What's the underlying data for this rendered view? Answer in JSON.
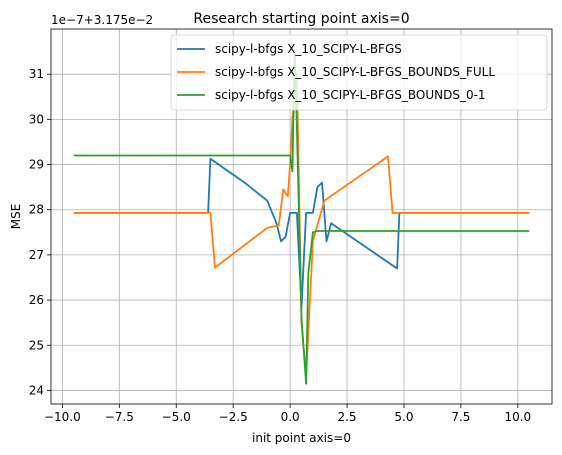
{
  "chart_data": {
    "type": "line",
    "title": "Research starting point axis=0",
    "xlabel": "init point axis=0",
    "ylabel": "MSE",
    "offset_label": "1e−7+3.175e−2",
    "xlim": [
      -10.5,
      11.5
    ],
    "ylim": [
      23.7,
      32.0
    ],
    "x_ticks": [
      -10.0,
      -7.5,
      -5.0,
      -2.5,
      0.0,
      2.5,
      5.0,
      7.5,
      10.0
    ],
    "x_tick_labels": [
      "−10.0",
      "−7.5",
      "−5.0",
      "−2.5",
      "0.0",
      "2.5",
      "5.0",
      "7.5",
      "10.0"
    ],
    "y_ticks": [
      24,
      25,
      26,
      27,
      28,
      29,
      30,
      31
    ],
    "y_tick_labels": [
      "24",
      "25",
      "26",
      "27",
      "28",
      "29",
      "30",
      "31"
    ],
    "grid": true,
    "legend_position": "top-right",
    "series": [
      {
        "name": "scipy-l-bfgs X_10_SCIPY-L-BFGS",
        "color": "#1f77b4",
        "x": [
          -9.5,
          -3.6,
          -3.5,
          -2.0,
          -1.0,
          -0.6,
          -0.4,
          -0.2,
          0.0,
          0.3,
          0.5,
          0.7,
          1.0,
          1.2,
          1.4,
          1.6,
          1.8,
          4.7,
          4.8,
          10.5
        ],
        "y": [
          27.93,
          27.93,
          29.13,
          28.6,
          28.2,
          27.7,
          27.3,
          27.4,
          27.93,
          27.93,
          25.85,
          27.93,
          27.93,
          28.5,
          28.6,
          27.3,
          27.7,
          26.7,
          27.93,
          27.93
        ]
      },
      {
        "name": "scipy-l-bfgs X_10_SCIPY-L-BFGS_BOUNDS_FULL",
        "color": "#ff7f0e",
        "x": [
          -9.5,
          -3.5,
          -3.3,
          -1.0,
          -0.5,
          -0.3,
          -0.1,
          0.0,
          0.1,
          0.3,
          0.5,
          0.7,
          1.0,
          1.5,
          4.3,
          4.5,
          10.5
        ],
        "y": [
          27.93,
          27.93,
          26.72,
          27.6,
          27.65,
          28.45,
          28.3,
          29.0,
          30.0,
          31.0,
          25.5,
          24.3,
          27.3,
          28.2,
          29.18,
          27.93,
          27.93
        ]
      },
      {
        "name": "scipy-l-bfgs X_10_SCIPY-L-BFGS_BOUNDS_0-1",
        "color": "#2ca02c",
        "x": [
          -9.5,
          0.0,
          0.1,
          0.2,
          0.3,
          0.5,
          0.7,
          0.8,
          1.0,
          1.2,
          10.5
        ],
        "y": [
          29.2,
          29.2,
          28.85,
          31.5,
          29.8,
          25.6,
          24.15,
          26.6,
          27.5,
          27.53,
          27.53
        ]
      }
    ]
  }
}
